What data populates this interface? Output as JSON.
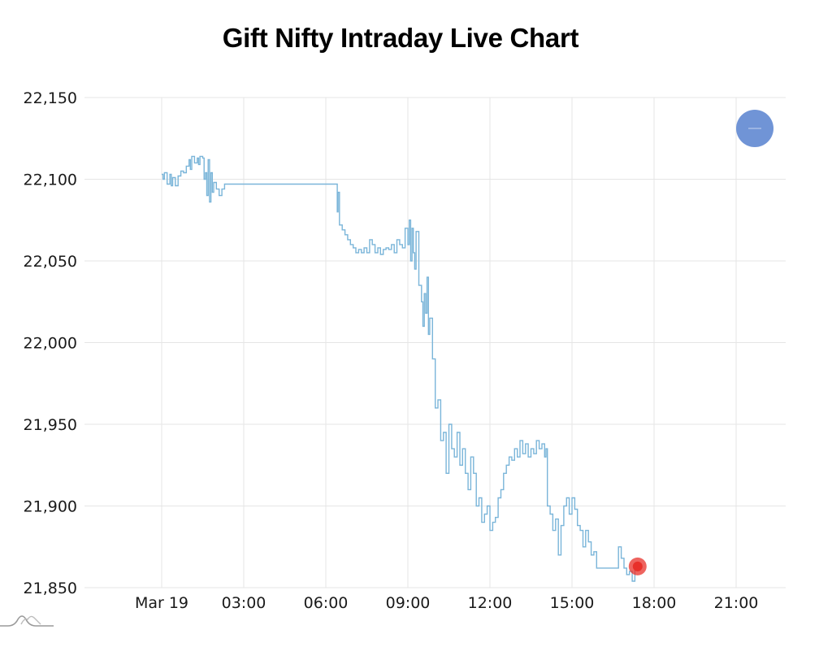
{
  "header": {
    "title": "Gift Nifty Intraday Live Chart"
  },
  "legend_button": {
    "icon": "minus-icon",
    "color": "#7094d6"
  },
  "logo": {
    "icon": "mountain-waves-logo-icon"
  },
  "colors": {
    "line": "#7ab5d9",
    "last_point": "#e8302a",
    "grid": "#e5e5e5"
  },
  "chart_data": {
    "type": "line",
    "title": "Gift Nifty Intraday Live Chart",
    "xlabel": "",
    "ylabel": "",
    "ylim": [
      21850,
      22150
    ],
    "yticks": [
      "22,150",
      "22,100",
      "22,050",
      "22,000",
      "21,950",
      "21,900",
      "21,850"
    ],
    "ytick_values": [
      22150,
      22100,
      22050,
      22000,
      21950,
      21900,
      21850
    ],
    "xticks": [
      "Mar 19",
      "03:00",
      "06:00",
      "09:00",
      "12:00",
      "15:00",
      "18:00",
      "21:00"
    ],
    "xtick_hours": [
      0,
      3,
      6,
      9,
      12,
      15,
      18,
      21
    ],
    "xlim_hours": [
      -2.5,
      22.8
    ],
    "grid": true,
    "legend_position": "none",
    "series": [
      {
        "name": "Gift Nifty",
        "x_hours": [
          0.0,
          0.05,
          0.1,
          0.2,
          0.3,
          0.35,
          0.4,
          0.5,
          0.6,
          0.7,
          0.8,
          0.9,
          1.0,
          1.05,
          1.1,
          1.2,
          1.3,
          1.35,
          1.4,
          1.5,
          1.55,
          1.6,
          1.65,
          1.7,
          1.75,
          1.8,
          1.85,
          1.9,
          2.0,
          2.1,
          2.2,
          2.3,
          2.4,
          3.0,
          4.0,
          5.0,
          6.0,
          6.4,
          6.42,
          6.45,
          6.5,
          6.6,
          6.7,
          6.8,
          6.9,
          7.0,
          7.1,
          7.2,
          7.3,
          7.4,
          7.5,
          7.6,
          7.7,
          7.8,
          7.9,
          8.0,
          8.1,
          8.2,
          8.3,
          8.4,
          8.5,
          8.6,
          8.7,
          8.8,
          8.9,
          9.0,
          9.05,
          9.1,
          9.15,
          9.2,
          9.25,
          9.3,
          9.4,
          9.5,
          9.55,
          9.6,
          9.65,
          9.7,
          9.75,
          9.8,
          9.9,
          10.0,
          10.1,
          10.2,
          10.3,
          10.4,
          10.5,
          10.6,
          10.7,
          10.8,
          10.9,
          11.0,
          11.1,
          11.2,
          11.3,
          11.4,
          11.5,
          11.6,
          11.7,
          11.8,
          11.9,
          12.0,
          12.1,
          12.2,
          12.3,
          12.4,
          12.5,
          12.6,
          12.7,
          12.8,
          12.9,
          13.0,
          13.1,
          13.2,
          13.3,
          13.4,
          13.5,
          13.6,
          13.7,
          13.8,
          13.9,
          14.0,
          14.05,
          14.1,
          14.2,
          14.3,
          14.4,
          14.5,
          14.6,
          14.7,
          14.8,
          14.9,
          15.0,
          15.1,
          15.2,
          15.3,
          15.4,
          15.5,
          15.6,
          15.7,
          15.8,
          15.9,
          16.0,
          16.1,
          16.2,
          16.3,
          16.4,
          16.5,
          16.6,
          16.7,
          16.8,
          16.9,
          17.0,
          17.1,
          17.2,
          17.3,
          17.4
        ],
        "values": [
          22103,
          22100,
          22104,
          22097,
          22103,
          22096,
          22101,
          22096,
          22102,
          22105,
          22104,
          22108,
          22112,
          22106,
          22114,
          22110,
          22113,
          22109,
          22114,
          22113,
          22100,
          22104,
          22090,
          22112,
          22086,
          22104,
          22092,
          22098,
          22094,
          22090,
          22094,
          22097,
          22097,
          22097,
          22097,
          22097,
          22097,
          22097,
          22080,
          22092,
          22072,
          22069,
          22066,
          22063,
          22060,
          22058,
          22055,
          22057,
          22055,
          22058,
          22055,
          22063,
          22060,
          22055,
          22058,
          22054,
          22057,
          22058,
          22057,
          22060,
          22055,
          22063,
          22060,
          22058,
          22070,
          22060,
          22075,
          22050,
          22070,
          22055,
          22045,
          22068,
          22035,
          22025,
          22010,
          22030,
          22018,
          22040,
          22005,
          22015,
          21990,
          21960,
          21965,
          21940,
          21945,
          21920,
          21950,
          21935,
          21930,
          21945,
          21925,
          21935,
          21920,
          21910,
          21930,
          21920,
          21900,
          21905,
          21890,
          21895,
          21900,
          21885,
          21890,
          21893,
          21905,
          21910,
          21920,
          21925,
          21930,
          21928,
          21935,
          21930,
          21940,
          21932,
          21938,
          21930,
          21935,
          21932,
          21940,
          21935,
          21938,
          21930,
          21935,
          21900,
          21895,
          21885,
          21892,
          21870,
          21888,
          21900,
          21905,
          21895,
          21905,
          21898,
          21888,
          21885,
          21875,
          21885,
          21878,
          21870,
          21872,
          21862,
          21862,
          21862,
          21862,
          21862,
          21862,
          21862,
          21862,
          21875,
          21868,
          21862,
          21858,
          21860,
          21854,
          21864,
          21860,
          21863
        ]
      }
    ],
    "last_point": {
      "x_hours": 17.4,
      "value": 21863
    }
  }
}
